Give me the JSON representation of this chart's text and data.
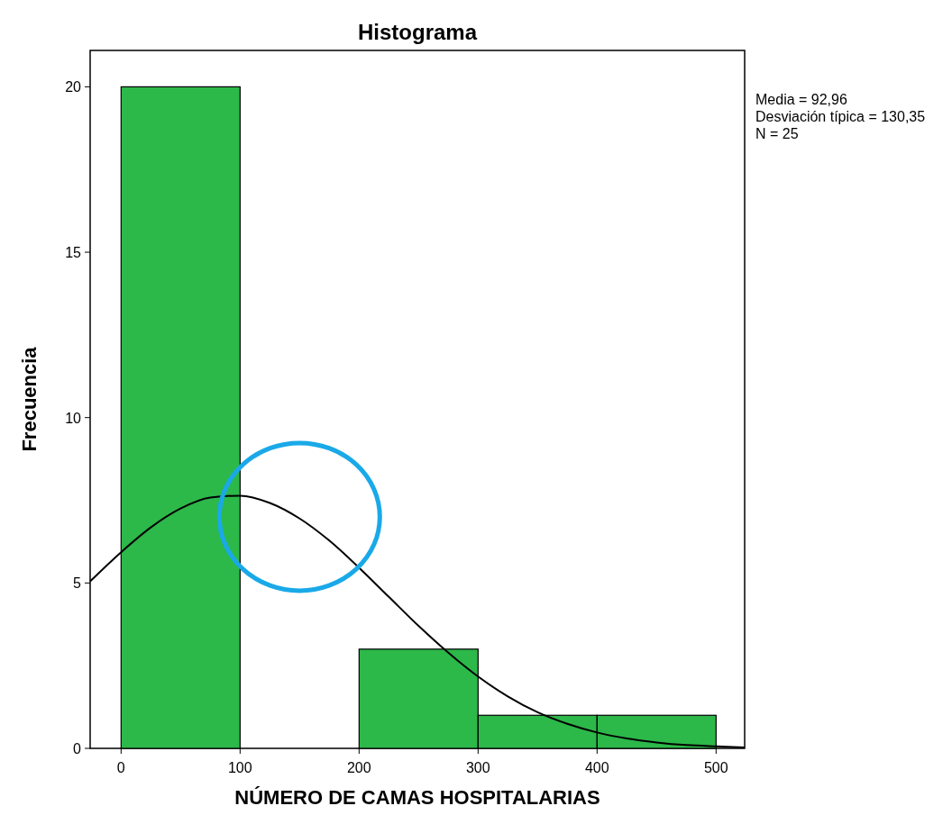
{
  "chart_data": {
    "type": "histogram",
    "title": "Histograma",
    "xlabel": "NÚMERO DE CAMAS HOSPITALARIAS",
    "ylabel": "Frecuencia",
    "bins": [
      0,
      100,
      200,
      300,
      400,
      500
    ],
    "values": [
      20,
      0,
      3,
      1,
      1
    ],
    "color": "#2db84a",
    "series": [
      {
        "type": "line",
        "color": "#000000",
        "x": [
          -26,
          0,
          25,
          50,
          75,
          100,
          125,
          150,
          175,
          200,
          225,
          250,
          275,
          300,
          325,
          350,
          375,
          400,
          425,
          450,
          475,
          500,
          524
        ],
        "values": [
          5.05,
          5.93,
          6.68,
          7.25,
          7.58,
          7.64,
          7.42,
          6.95,
          6.28,
          5.46,
          4.58,
          3.7,
          2.89,
          2.17,
          1.57,
          1.09,
          0.74,
          0.48,
          0.3,
          0.18,
          0.1,
          0.06,
          0.03
        ]
      }
    ],
    "xlim": [
      -26,
      524
    ],
    "ylim": [
      0,
      21.1
    ],
    "xticks": [
      0,
      100,
      200,
      300,
      400,
      500
    ],
    "yticks": [
      0,
      5,
      10,
      15,
      20
    ],
    "annotations": [
      "Media = 92,96",
      "Desviación típica = 130,35",
      "N = 25"
    ]
  }
}
